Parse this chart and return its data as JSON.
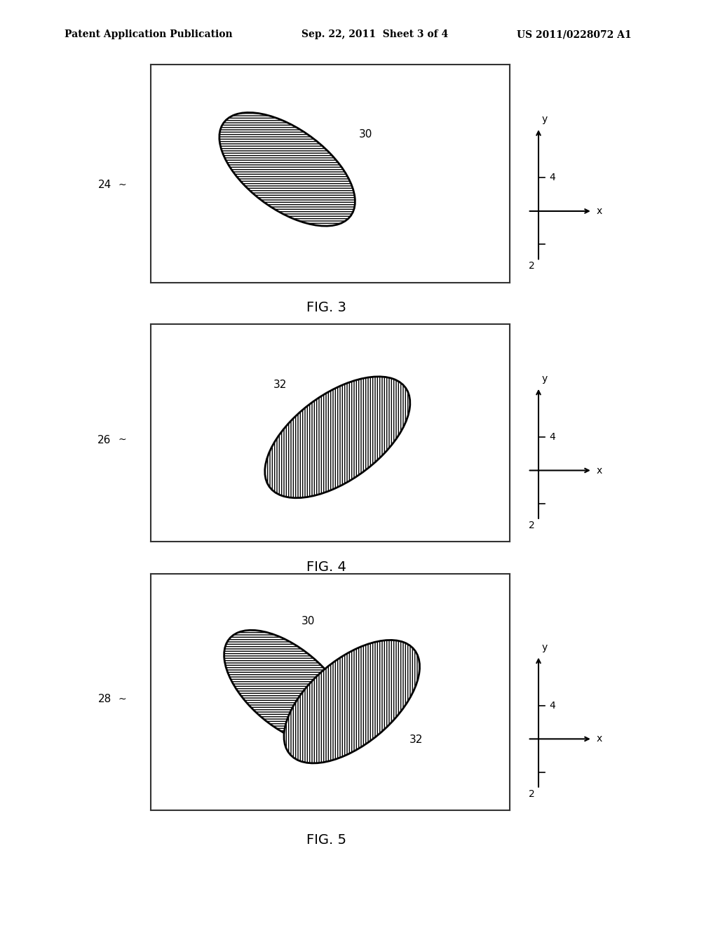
{
  "header_left": "Patent Application Publication",
  "header_mid": "Sep. 22, 2011  Sheet 3 of 4",
  "header_right": "US 2011/0228072 A1",
  "fig3_label": "FIG. 3",
  "fig4_label": "FIG. 4",
  "fig5_label": "FIG. 5",
  "label_24": "24",
  "label_26": "26",
  "label_28": "28",
  "label_30": "30",
  "label_32": "32",
  "bg_color": "#ffffff",
  "box_color": "#333333",
  "ellipse_color": "#000000",
  "hatch_color": "#555555",
  "axis_label_x": "x",
  "axis_label_y": "y",
  "axis_label_2": "2",
  "axis_label_4": "4"
}
